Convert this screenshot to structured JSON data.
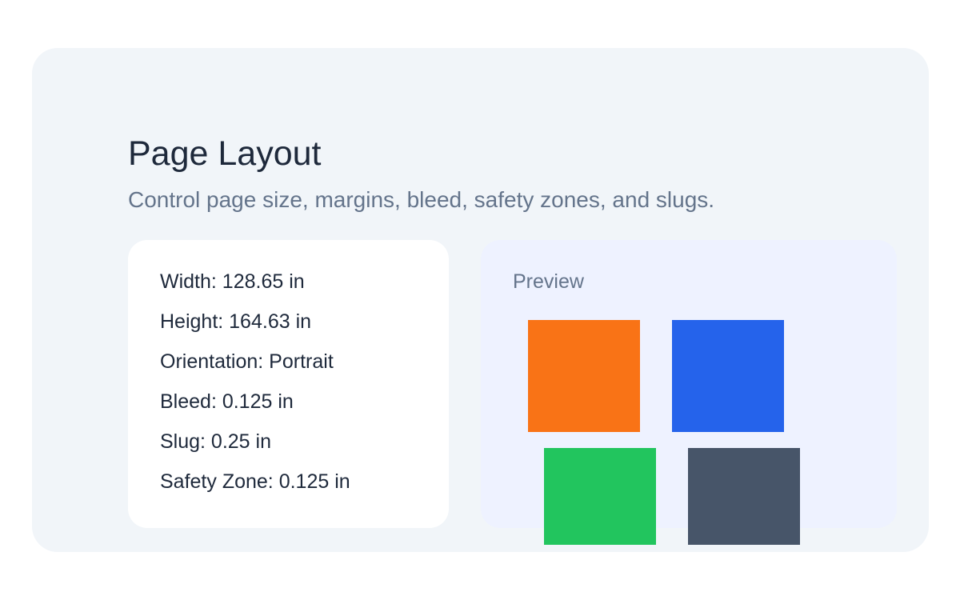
{
  "header": {
    "title": "Page Layout",
    "subtitle": "Control page size, margins, bleed, safety zones, and slugs."
  },
  "specs": {
    "items": [
      {
        "label": "Width",
        "value": "128.65 in",
        "text": "Width: 128.65 in"
      },
      {
        "label": "Height",
        "value": "164.63 in",
        "text": "Height: 164.63 in"
      },
      {
        "label": "Orientation",
        "value": "Portrait",
        "text": "Orientation: Portrait"
      },
      {
        "label": "Bleed",
        "value": "0.125 in",
        "text": "Bleed: 0.125 in"
      },
      {
        "label": "Slug",
        "value": "0.25 in",
        "text": "Slug: 0.25 in"
      },
      {
        "label": "Safety Zone",
        "value": "0.125 in",
        "text": "Safety Zone: 0.125 in"
      }
    ]
  },
  "preview": {
    "label": "Preview",
    "swatches": [
      {
        "name": "orange-swatch",
        "color": "#f97316"
      },
      {
        "name": "blue-swatch",
        "color": "#2563eb"
      },
      {
        "name": "green-swatch",
        "color": "#22c55e"
      },
      {
        "name": "slate-swatch",
        "color": "#475569"
      }
    ]
  },
  "colors": {
    "page_bg": "#ffffff",
    "section_bg": "#f1f5f9",
    "card_bg": "#ffffff",
    "panel_bg": "#eef2ff",
    "text_dark": "#1e293b",
    "text_muted": "#64748b"
  }
}
